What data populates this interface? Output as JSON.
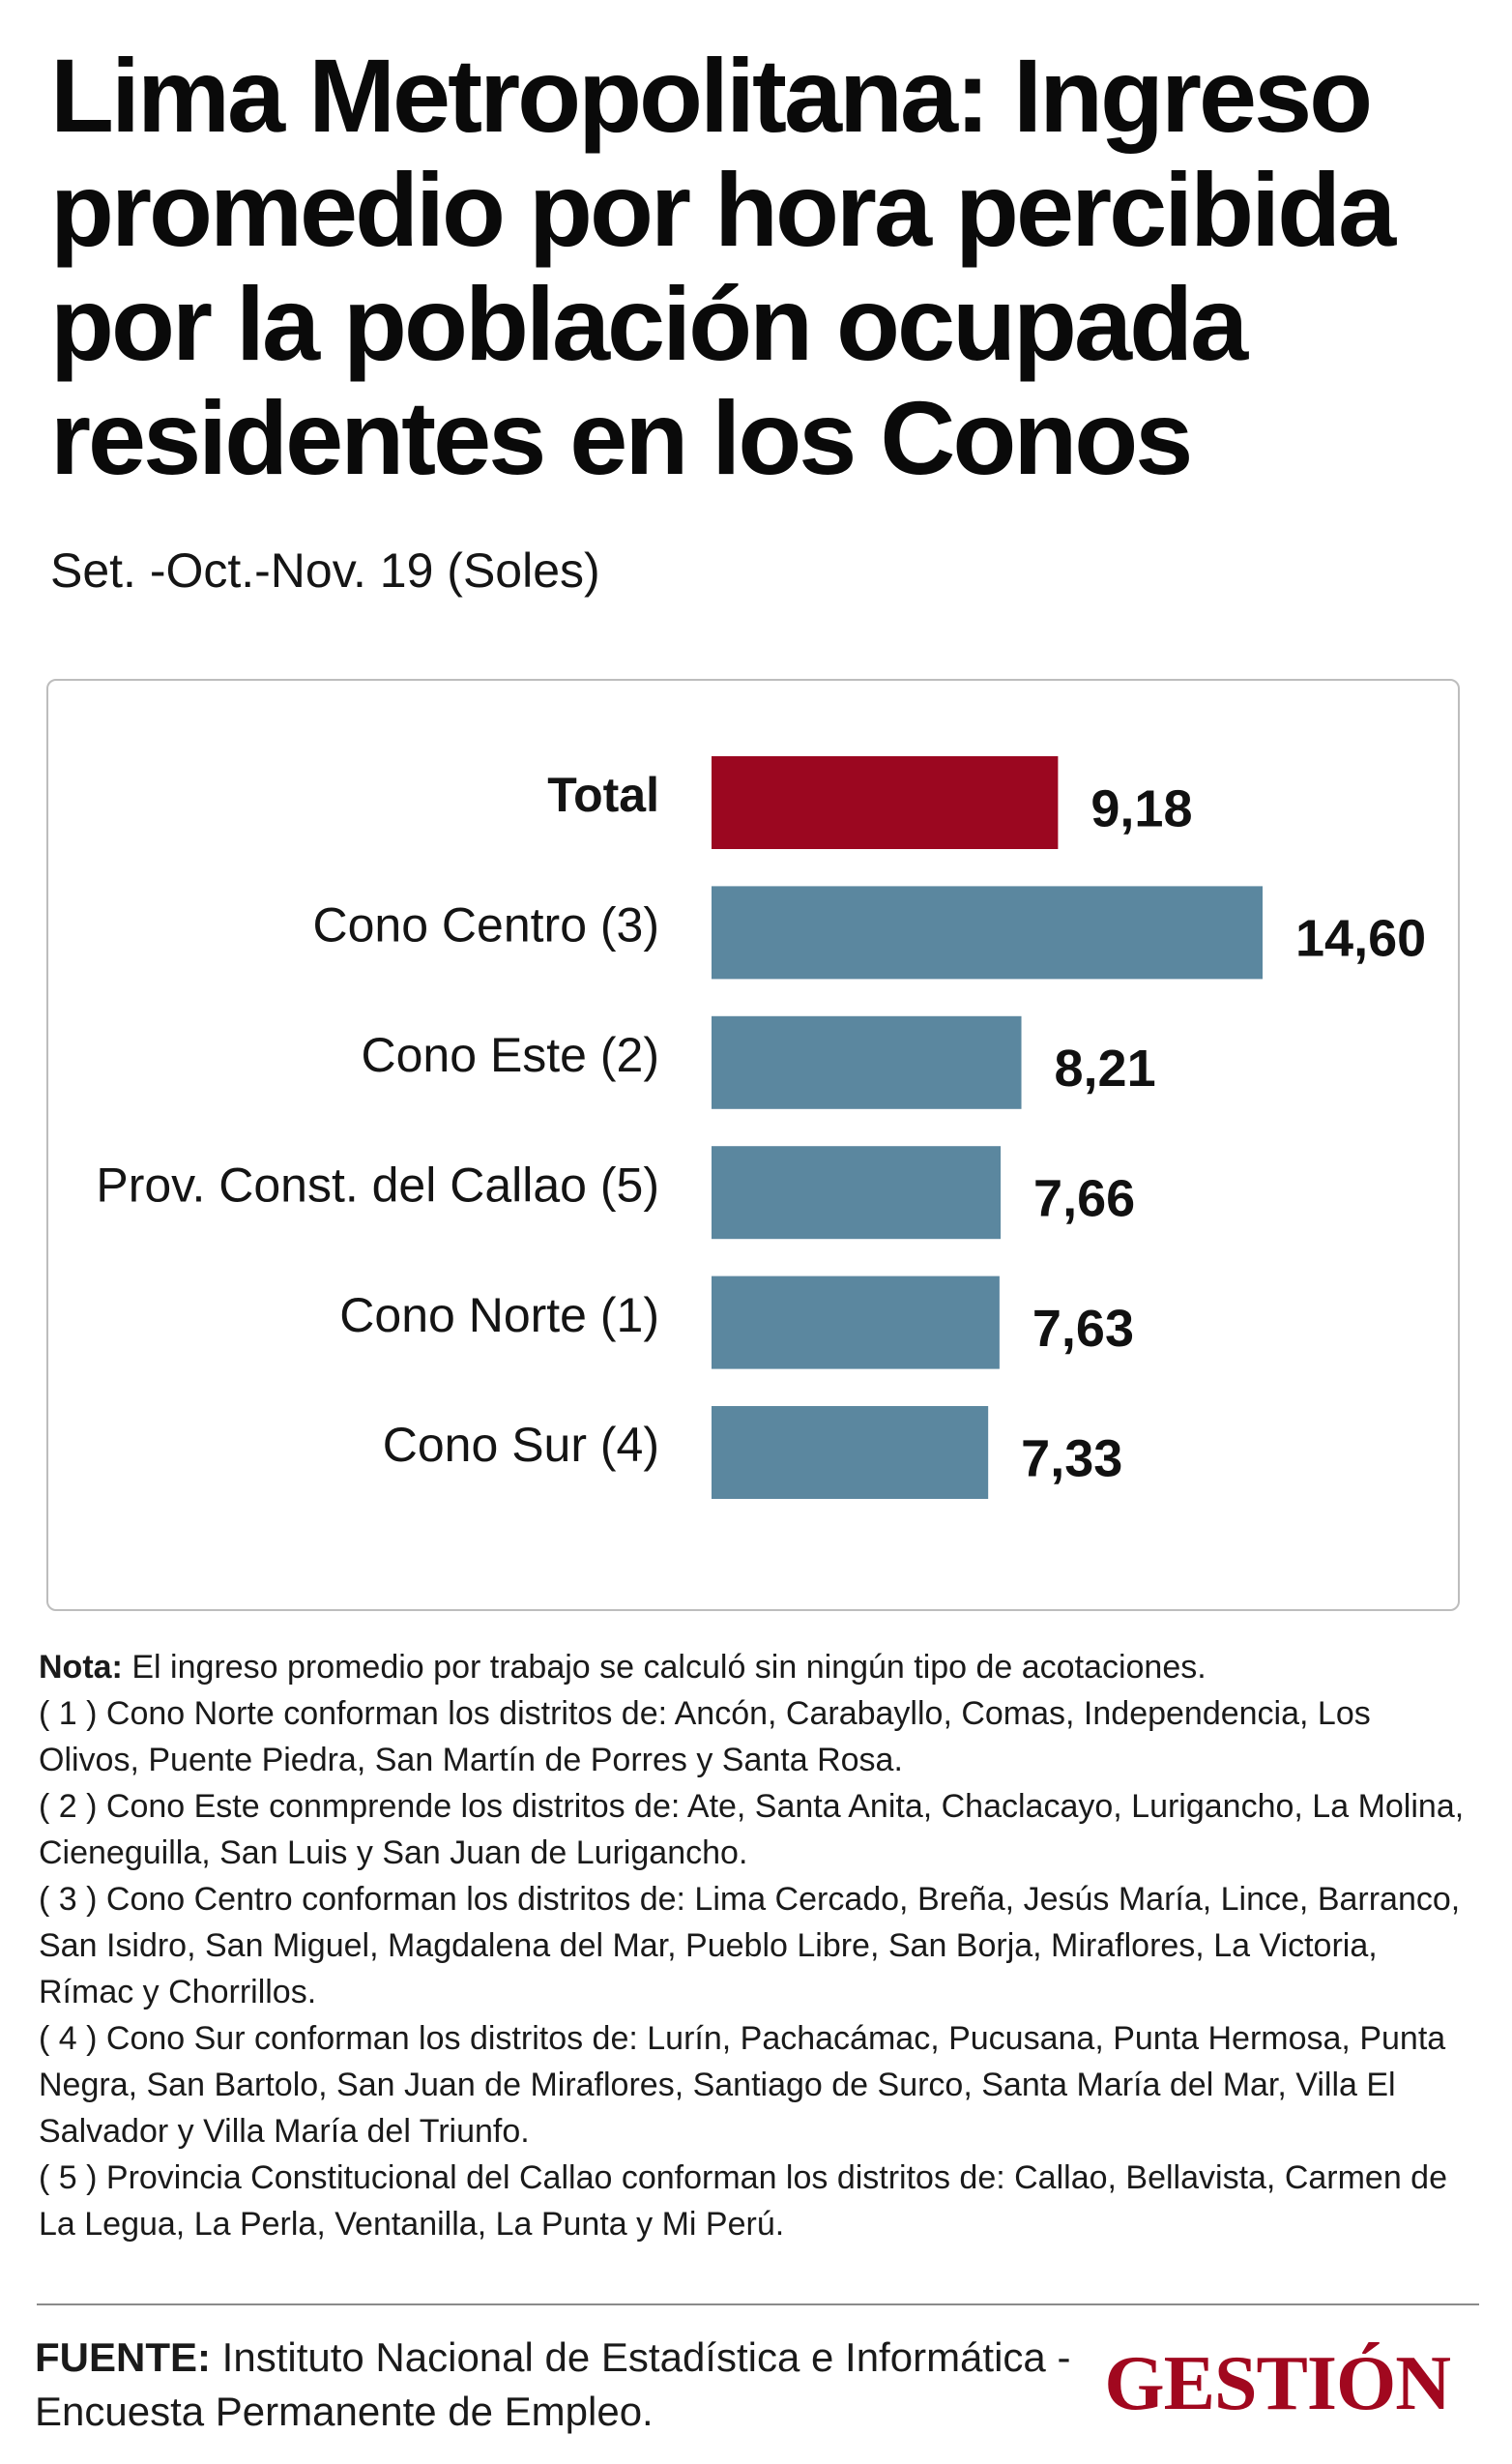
{
  "header": {
    "title": "Lima Metropolitana: Ingreso promedio por hora percibida por la población ocupada residentes en los Conos",
    "subtitle": "Set. -Oct.-Nov. 19 (Soles)"
  },
  "chart_data": {
    "type": "bar",
    "orientation": "horizontal",
    "title": "Lima Metropolitana: Ingreso promedio por hora percibida por la población ocupada residentes en los Conos",
    "subtitle": "Set. -Oct.-Nov. 19 (Soles)",
    "categories": [
      "Total",
      "Cono Centro (3)",
      "Cono Este (2)",
      "Prov. Const. del Callao (5)",
      "Cono Norte (1)",
      "Cono Sur (4)"
    ],
    "values": [
      9.18,
      14.6,
      8.21,
      7.66,
      7.63,
      7.33
    ],
    "value_labels": [
      "9,18",
      "14,60",
      "8,21",
      "7,66",
      "7,63",
      "7,33"
    ],
    "bar_colors": [
      "#9b0720",
      "#5b879f",
      "#5b879f",
      "#5b879f",
      "#5b879f",
      "#5b879f"
    ],
    "xlim": [
      0,
      14.6
    ],
    "grid": false,
    "legend": "none"
  },
  "notes": {
    "label": "Nota:",
    "text": " El ingreso promedio por trabajo se calculó sin ningún tipo de acotaciones.",
    "items": [
      "( 1 ) Cono Norte conforman los distritos de: Ancón, Carabayllo, Comas, Independencia, Los Olivos, Puente Piedra, San Martín de Porres y Santa Rosa.",
      "( 2 )  Cono Este conmprende los distritos de: Ate, Santa Anita, Chaclacayo, Lurigancho, La Molina, Cieneguilla, San Luis y San Juan de Lurigancho.",
      "( 3 ) Cono Centro conforman los distritos de: Lima Cercado, Breña, Jesús María, Lince, Barranco, San Isidro, San Miguel, Magdalena del Mar, Pueblo Libre, San Borja, Miraflores, La Victoria, Rímac y Chorrillos.",
      "( 4 ) Cono Sur conforman los distritos de: Lurín, Pachacámac, Pucusana, Punta Hermosa, Punta Negra, San Bartolo, San Juan de Miraflores, Santiago de Surco, Santa María del Mar, Villa El Salvador y Villa María del Triunfo.",
      "( 5 )  Provincia Constitucional del Callao conforman los distritos de: Callao, Bellavista, Carmen de La Legua, La Perla, Ventanilla, La Punta y Mi Perú."
    ]
  },
  "source": {
    "label": "FUENTE:",
    "text": " Instituto Nacional de Estadística e Informática - Encuesta Permanente de Empleo."
  },
  "brand": {
    "logo_text": "GESTIÓN",
    "color": "#a1081f"
  }
}
